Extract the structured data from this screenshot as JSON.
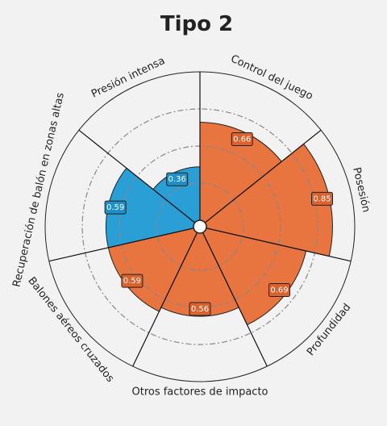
{
  "chart_data": {
    "type": "radar-bar",
    "title": "Tipo 2",
    "range": [
      0,
      1
    ],
    "rings": [
      0.25,
      0.5,
      0.75
    ],
    "start_angle_deg": 90,
    "direction": "clockwise",
    "colors": {
      "orange": "#e8743f",
      "blue": "#2a9fd6",
      "label_bg_orange": "#d9622e",
      "label_bg_blue": "#1f8fc8",
      "grid": "#555555",
      "ring": "#888888"
    },
    "categories": [
      "Control del juego",
      "Posesión",
      "Profundidad",
      "Otros factores de impacto",
      "Balones aéreos cruzados",
      "Recuperación de balón en zonas altas",
      "Presión intensa"
    ],
    "values": [
      0.66,
      0.85,
      0.69,
      0.56,
      0.59,
      0.59,
      0.36
    ],
    "value_labels": [
      "0.66",
      "0.85",
      "0.69",
      "0.56",
      "0.59",
      "0.59",
      "0.36"
    ],
    "bar_colors": [
      "orange",
      "orange",
      "orange",
      "orange",
      "orange",
      "blue",
      "blue"
    ]
  }
}
